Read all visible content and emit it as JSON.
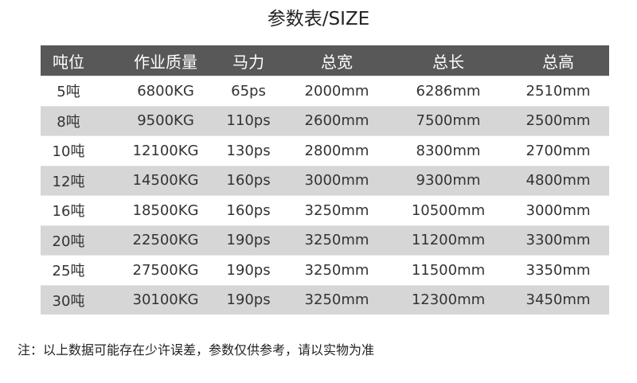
{
  "title": "参数表/SIZE",
  "headers": [
    "吨位",
    "作业质量",
    "马力",
    "总宽",
    "总长",
    "总高"
  ],
  "rows": [
    [
      "5吨",
      "6800KG",
      "65ps",
      "2000mm",
      "6286mm",
      "2510mm"
    ],
    [
      "8吨",
      "9500KG",
      "110ps",
      "2600mm",
      "7500mm",
      "2500mm"
    ],
    [
      "10吨",
      "12100KG",
      "130ps",
      "2800mm",
      "8300mm",
      "2700mm"
    ],
    [
      "12吨",
      "14500KG",
      "160ps",
      "3000mm",
      "9300mm",
      "4800mm"
    ],
    [
      "16吨",
      "18500KG",
      "160ps",
      "3250mm",
      "10500mm",
      "3000mm"
    ],
    [
      "20吨",
      "22500KG",
      "190ps",
      "3250mm",
      "11200mm",
      "3300mm"
    ],
    [
      "25吨",
      "27500KG",
      "190ps",
      "3250mm",
      "11500mm",
      "3350mm"
    ],
    [
      "30吨",
      "30100KG",
      "190ps",
      "3250mm",
      "12300mm",
      "3450mm"
    ]
  ],
  "note": "注：以上数据可能存在少许误差，参数仅供参考，请以实物为准",
  "colors": {
    "header_bg": "#585858",
    "alt_row_bg": "#d6d6d6"
  }
}
